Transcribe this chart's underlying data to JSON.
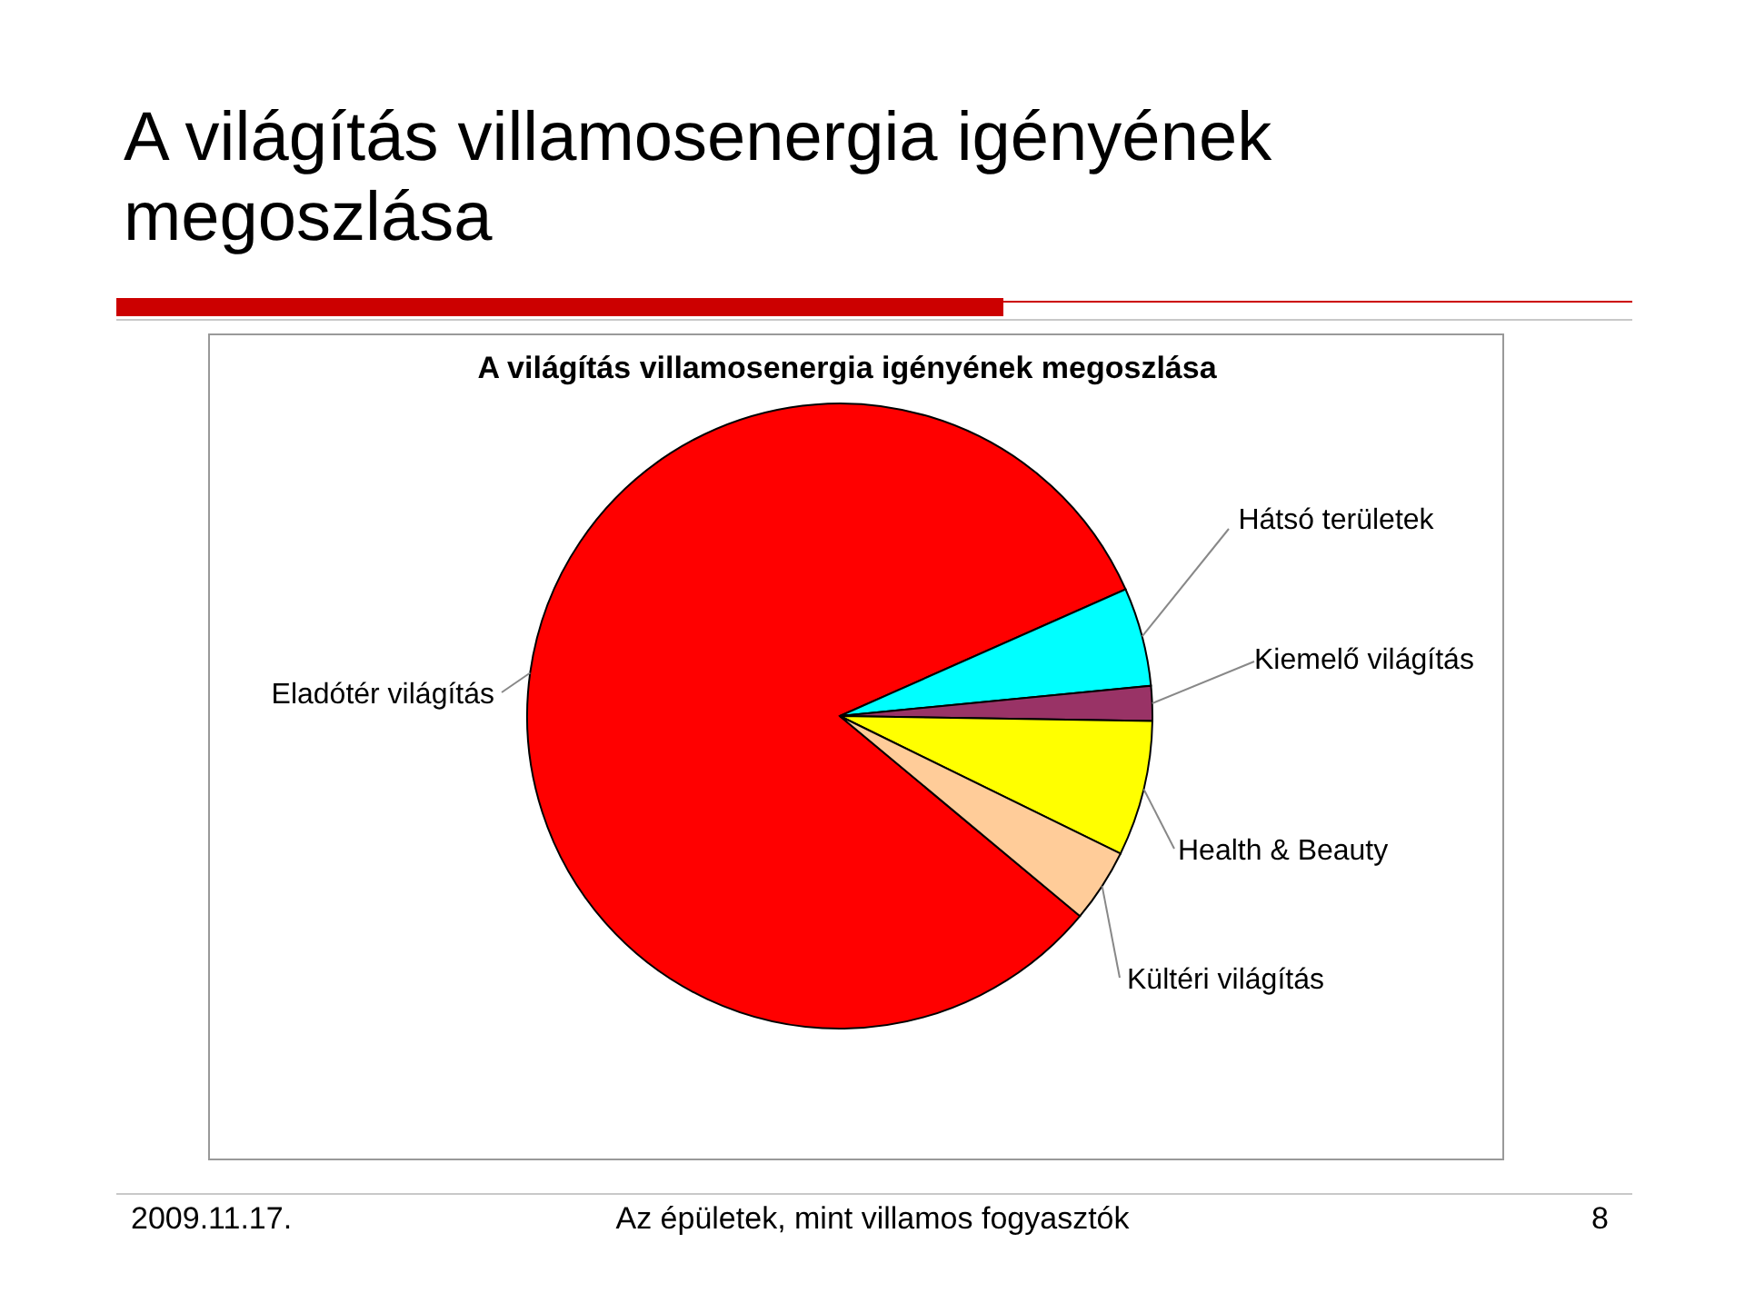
{
  "chart_data": {
    "type": "pie",
    "title": "A világítás villamosenergia igényének megoszlása",
    "subtitle": "A világítás villamosenergia igényének megoszlása",
    "categories": [
      "Eladótér világítás",
      "Hátsó területek",
      "Kiemelő világítás",
      "Health & Beauty",
      "Kültéri világítás"
    ],
    "values": [
      82.3,
      5.1,
      1.8,
      7.0,
      3.8
    ],
    "colors": [
      "#ff0000",
      "#00ffff",
      "#993366",
      "#ffff00",
      "#ffcc99"
    ],
    "legend": false,
    "annotations": [
      "2009.11.17.",
      "Az épületek, mint villamos fogyasztók",
      "8"
    ]
  }
}
